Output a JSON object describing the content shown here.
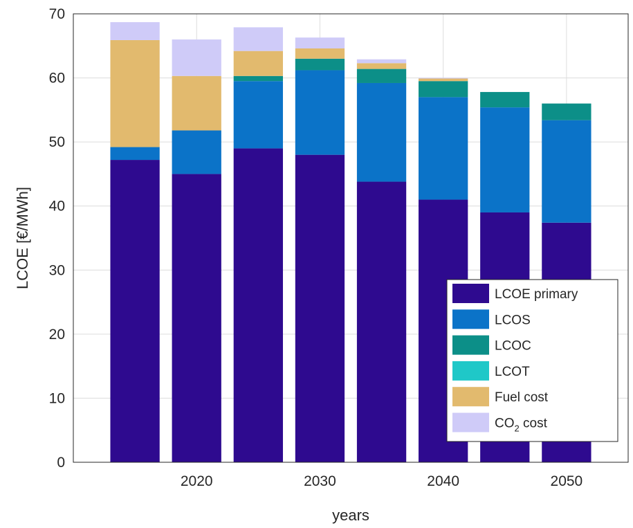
{
  "chart_data": {
    "type": "bar",
    "stacked": true,
    "xlabel": "years",
    "ylabel": "LCOE [€/MWh]",
    "ylim": [
      0,
      70
    ],
    "yticks": [
      0,
      10,
      20,
      30,
      40,
      50,
      60,
      70
    ],
    "xlim": [
      2010,
      2055
    ],
    "xticks": [
      2020,
      2030,
      2040,
      2050
    ],
    "grid": true,
    "legend_position": "bottom-right",
    "x": [
      2015,
      2020,
      2025,
      2030,
      2035,
      2040,
      2045,
      2050
    ],
    "series": [
      {
        "name": "LCOE primary",
        "color": "#2e0a8f",
        "values": [
          47.2,
          45.0,
          49.0,
          48.0,
          43.8,
          41.0,
          39.0,
          37.4
        ]
      },
      {
        "name": "LCOS",
        "color": "#0b73c8",
        "values": [
          2.0,
          6.8,
          10.5,
          13.2,
          15.4,
          16.0,
          16.4,
          16.0
        ]
      },
      {
        "name": "LCOC",
        "color": "#0c8f88",
        "values": [
          0.0,
          0.0,
          0.8,
          1.8,
          2.2,
          2.5,
          2.4,
          2.6
        ]
      },
      {
        "name": "LCOT",
        "color": "#1fc8c8",
        "values": [
          0,
          0,
          0,
          0,
          0,
          0,
          0,
          0
        ]
      },
      {
        "name": "Fuel cost",
        "color": "#e2ba6e",
        "values": [
          16.7,
          8.5,
          3.9,
          1.6,
          0.9,
          0.4,
          0.0,
          0.0
        ]
      },
      {
        "name": "CO2 cost",
        "label_main": "CO",
        "label_sub": "2",
        "label_rest": " cost",
        "color": "#cfcbf8",
        "values": [
          2.8,
          5.7,
          3.7,
          1.7,
          0.6,
          0.1,
          0.0,
          0.0
        ]
      }
    ]
  }
}
